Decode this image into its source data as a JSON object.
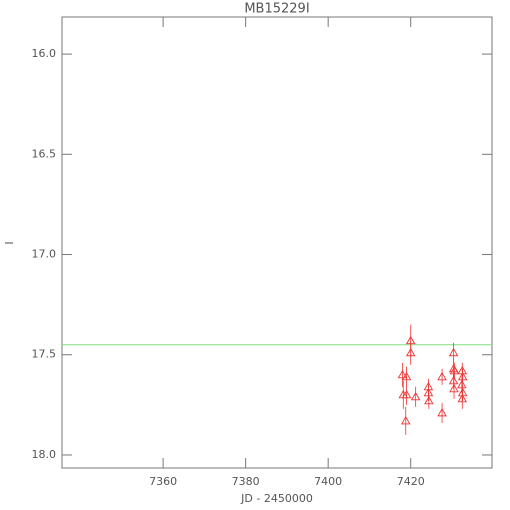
{
  "chart_data": {
    "type": "scatter",
    "title": "MB15229I",
    "x_label": "JD - 2450000",
    "y_label": "I",
    "xlim": [
      7335.5,
      7439.7
    ],
    "ylim": [
      18.065,
      15.815
    ],
    "xticks": [
      7360,
      7380,
      7400,
      7420
    ],
    "yticks": [
      {
        "value": 16,
        "label": "16.0"
      },
      16.5,
      {
        "value": 17,
        "label": "17.0"
      },
      17.5,
      {
        "value": 18,
        "label": "18.0"
      }
    ],
    "reference_line": {
      "value": 17.45,
      "color": "#7fe07f"
    },
    "series": [
      {
        "color": "#ee3333",
        "x": [
          7418.0,
          7418.2,
          7419.0,
          7419.0,
          7418.8,
          7420.0,
          7420.0,
          7421.2,
          7424.3,
          7424.3,
          7424.4,
          7427.6,
          7427.6,
          7430.4,
          7430.4,
          7430.6,
          7430.4,
          7430.5,
          7432.5,
          7432.6,
          7432.4,
          7432.6,
          7432.5
        ],
        "values": [
          17.6,
          17.7,
          17.61,
          17.7,
          17.83,
          17.43,
          17.49,
          17.71,
          17.66,
          17.69,
          17.73,
          17.61,
          17.79,
          17.49,
          17.57,
          17.58,
          17.63,
          17.67,
          17.58,
          17.61,
          17.65,
          17.69,
          17.72
        ],
        "errors": [
          0.06,
          0.07,
          0.05,
          0.05,
          0.07,
          0.08,
          0.06,
          0.05,
          0.04,
          0.04,
          0.04,
          0.04,
          0.05,
          0.05,
          0.05,
          0.04,
          0.04,
          0.05,
          0.04,
          0.04,
          0.04,
          0.04,
          0.05
        ]
      }
    ]
  }
}
